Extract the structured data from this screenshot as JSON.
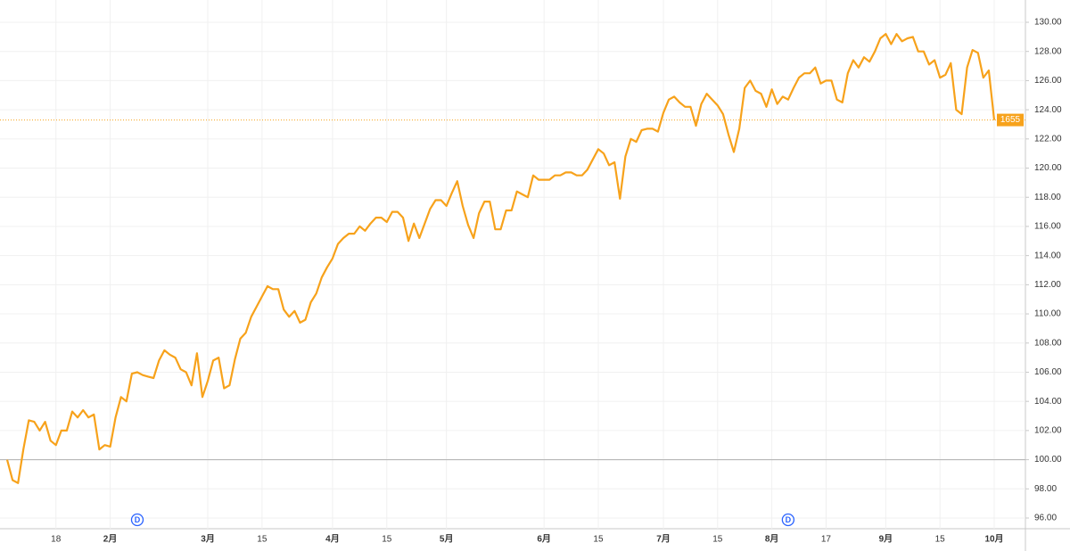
{
  "chart_data": {
    "type": "line",
    "categories": [
      null,
      null,
      null,
      null,
      null,
      null,
      null,
      null,
      null,
      "18",
      null,
      null,
      null,
      null,
      null,
      null,
      null,
      null,
      null,
      "2月",
      null,
      null,
      null,
      null,
      null,
      null,
      null,
      null,
      null,
      null,
      null,
      null,
      null,
      null,
      null,
      null,
      null,
      "3月",
      null,
      null,
      null,
      null,
      null,
      null,
      null,
      null,
      null,
      "15",
      null,
      null,
      null,
      null,
      null,
      null,
      null,
      null,
      null,
      null,
      null,
      null,
      "4月",
      null,
      null,
      null,
      null,
      null,
      null,
      null,
      null,
      null,
      "15",
      null,
      null,
      null,
      null,
      null,
      null,
      null,
      null,
      null,
      null,
      "5月",
      null,
      null,
      null,
      null,
      null,
      null,
      null,
      null,
      null,
      null,
      null,
      null,
      null,
      null,
      null,
      null,
      null,
      "6月",
      null,
      null,
      null,
      null,
      null,
      null,
      null,
      null,
      null,
      "15",
      null,
      null,
      null,
      null,
      null,
      null,
      null,
      null,
      null,
      null,
      null,
      "7月",
      null,
      null,
      null,
      null,
      null,
      null,
      null,
      null,
      null,
      "15",
      null,
      null,
      null,
      null,
      null,
      null,
      null,
      null,
      null,
      "8月",
      null,
      null,
      null,
      null,
      null,
      null,
      null,
      null,
      null,
      "17",
      null,
      null,
      null,
      null,
      null,
      null,
      null,
      null,
      null,
      null,
      "9月",
      null,
      null,
      null,
      null,
      null,
      null,
      null,
      null,
      null,
      "15",
      null,
      null,
      null,
      null,
      null,
      null,
      null,
      null,
      null,
      "10月"
    ],
    "series": [
      {
        "color": "#f7a21b",
        "values": [
          100.0,
          98.6,
          98.4,
          100.7,
          102.7,
          102.6,
          102.0,
          102.6,
          101.3,
          101.0,
          102.0,
          102.0,
          103.3,
          102.9,
          103.4,
          102.9,
          103.1,
          100.7,
          101.0,
          100.9,
          102.9,
          104.3,
          104.0,
          105.9,
          106.0,
          105.8,
          105.7,
          105.6,
          106.8,
          107.5,
          107.2,
          107.0,
          106.2,
          106.0,
          105.1,
          107.3,
          104.3,
          105.4,
          106.8,
          107.0,
          104.9,
          105.1,
          106.9,
          108.3,
          108.7,
          109.8,
          110.5,
          111.2,
          111.9,
          111.7,
          111.7,
          110.3,
          109.8,
          110.2,
          109.4,
          109.6,
          110.8,
          111.4,
          112.5,
          113.2,
          113.8,
          114.8,
          115.2,
          115.5,
          115.5,
          116.0,
          115.7,
          116.2,
          116.6,
          116.6,
          116.3,
          117.0,
          117.0,
          116.6,
          115.0,
          116.2,
          115.2,
          116.2,
          117.2,
          117.8,
          117.8,
          117.4,
          118.3,
          119.1,
          117.4,
          116.1,
          115.2,
          116.9,
          117.7,
          117.7,
          115.8,
          115.8,
          117.1,
          117.1,
          118.4,
          118.2,
          118.0,
          119.5,
          119.2,
          119.2,
          119.2,
          119.5,
          119.5,
          119.7,
          119.7,
          119.5,
          119.5,
          119.9,
          120.6,
          121.3,
          121.0,
          120.2,
          120.4,
          117.9,
          120.8,
          122.0,
          121.8,
          122.6,
          122.7,
          122.7,
          122.5,
          123.8,
          124.7,
          124.9,
          124.5,
          124.2,
          124.2,
          122.9,
          124.4,
          125.1,
          124.7,
          124.3,
          123.7,
          122.3,
          121.1,
          122.7,
          125.5,
          126.0,
          125.3,
          125.1,
          124.2,
          125.4,
          124.4,
          124.9,
          124.7,
          125.5,
          126.2,
          126.5,
          126.5,
          126.9,
          125.8,
          126.0,
          126.0,
          124.7,
          124.5,
          126.5,
          127.4,
          126.9,
          127.6,
          127.3,
          128.0,
          128.9,
          129.2,
          128.5,
          129.2,
          128.7,
          128.9,
          129.0,
          128.0,
          128.0,
          127.1,
          127.4,
          126.2,
          126.4,
          127.2,
          124.0,
          123.7,
          126.9,
          128.1,
          127.9,
          126.2,
          126.7,
          123.3
        ]
      }
    ],
    "baseline": 100,
    "last_label": "1655",
    "markers": [
      {
        "label": "D",
        "index": 24
      },
      {
        "label": "D",
        "index": 144
      }
    ],
    "ylim": [
      96,
      130
    ],
    "yticks": [
      {
        "value": 96,
        "label": "96.00"
      },
      {
        "value": 98,
        "label": "98.00"
      },
      {
        "value": 100,
        "label": "100.00"
      },
      {
        "value": 102,
        "label": "102.00"
      },
      {
        "value": 104,
        "label": "104.00"
      },
      {
        "value": 106,
        "label": "106.00"
      },
      {
        "value": 108,
        "label": "108.00"
      },
      {
        "value": 110,
        "label": "110.00"
      },
      {
        "value": 112,
        "label": "112.00"
      },
      {
        "value": 114,
        "label": "114.00"
      },
      {
        "value": 116,
        "label": "116.00"
      },
      {
        "value": 118,
        "label": "118.00"
      },
      {
        "value": 120,
        "label": "120.00"
      },
      {
        "value": 122,
        "label": "122.00"
      },
      {
        "value": 124,
        "label": "124.00"
      },
      {
        "value": 126,
        "label": "126.00"
      },
      {
        "value": 128,
        "label": "128.00"
      },
      {
        "value": 130,
        "label": "130.00"
      }
    ],
    "grid": true
  }
}
